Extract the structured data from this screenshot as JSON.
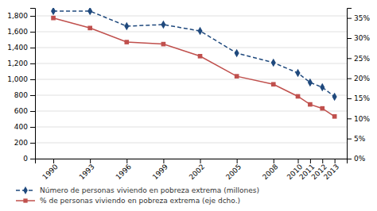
{
  "chart_data": {
    "type": "line",
    "x": [
      1990,
      1993,
      1996,
      1999,
      2002,
      2005,
      2008,
      2010,
      2011,
      2012,
      2013
    ],
    "xlim": [
      1988.5,
      2014.0
    ],
    "xticks": [
      1990,
      1993,
      1996,
      1999,
      2002,
      2005,
      2008,
      2010,
      2011,
      2012,
      2013
    ],
    "ylim": [
      0,
      1900
    ],
    "yticks": [
      0,
      200,
      400,
      600,
      800,
      {
        "value": 1000,
        "label": "1,000"
      },
      {
        "value": 1200,
        "label": "1,200"
      },
      {
        "value": 1400,
        "label": "1,400"
      },
      {
        "value": 1600,
        "label": "1,600"
      },
      {
        "value": 1800,
        "label": "1,800"
      }
    ],
    "y2lim": [
      0,
      37.5
    ],
    "y2ticks": [
      {
        "value": 0,
        "label": "0%"
      },
      {
        "value": 5,
        "label": "5%"
      },
      {
        "value": 10,
        "label": "10%"
      },
      {
        "value": 15,
        "label": "15%"
      },
      {
        "value": 20,
        "label": "20%"
      },
      {
        "value": 25,
        "label": "25%"
      },
      {
        "value": 30,
        "label": "30%"
      },
      {
        "value": 35,
        "label": "35%"
      }
    ],
    "grid": true,
    "legend": "lower left",
    "series": [
      {
        "name": "Número de personas viviendo en pobreza extrema (millones)",
        "color": "#1F497D",
        "marker": "diamond",
        "line_style": "dashed",
        "values": [
          1860,
          1860,
          1670,
          1690,
          1610,
          1330,
          1210,
          1080,
          960,
          900,
          780
        ]
      },
      {
        "name": "% de personas viviendo en pobreza extrema (eje dcho.)",
        "color": "#C0504D",
        "marker": "square",
        "line_style": "solid",
        "axis": "y2",
        "values": [
          35.0,
          32.5,
          29.0,
          28.5,
          25.5,
          20.5,
          18.5,
          15.5,
          13.5,
          12.5,
          10.5
        ]
      }
    ]
  }
}
